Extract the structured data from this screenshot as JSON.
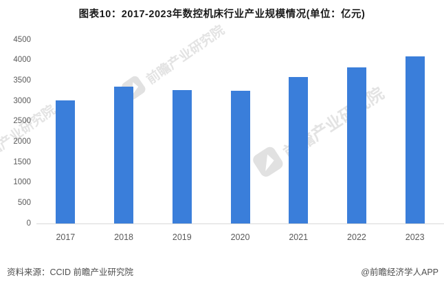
{
  "title": "图表10：2017-2023年数控机床行业产业规模情况(单位：亿元)",
  "watermark": {
    "text": "前瞻产业研究院"
  },
  "footer": {
    "source": "资料来源：CCID 前瞻产业研究院",
    "credit": "@前瞻经济学人APP"
  },
  "colors": {
    "bar": "#3A7EDA",
    "axis_line": "#D9D9D9",
    "tick_text": "#595959",
    "title_text": "#1A1A1A",
    "footer_text": "#4D4D4D",
    "watermark": "#E3E3E3",
    "background": "#FFFFFF"
  },
  "chart_data": {
    "type": "bar",
    "title": "图表10：2017-2023年数控机床行业产业规模情况(单位：亿元)",
    "unit": "亿元",
    "categories": [
      "2017",
      "2018",
      "2019",
      "2020",
      "2021",
      "2022",
      "2023"
    ],
    "values": [
      3020,
      3350,
      3270,
      3250,
      3590,
      3830,
      4100
    ],
    "xlabel": "",
    "ylabel": "",
    "ylim": [
      0,
      4500
    ],
    "yticks": [
      0,
      500,
      1000,
      1500,
      2000,
      2500,
      3000,
      3500,
      4000,
      4500
    ],
    "grid": false,
    "legend": false,
    "bar_color": "#3A7EDA"
  }
}
